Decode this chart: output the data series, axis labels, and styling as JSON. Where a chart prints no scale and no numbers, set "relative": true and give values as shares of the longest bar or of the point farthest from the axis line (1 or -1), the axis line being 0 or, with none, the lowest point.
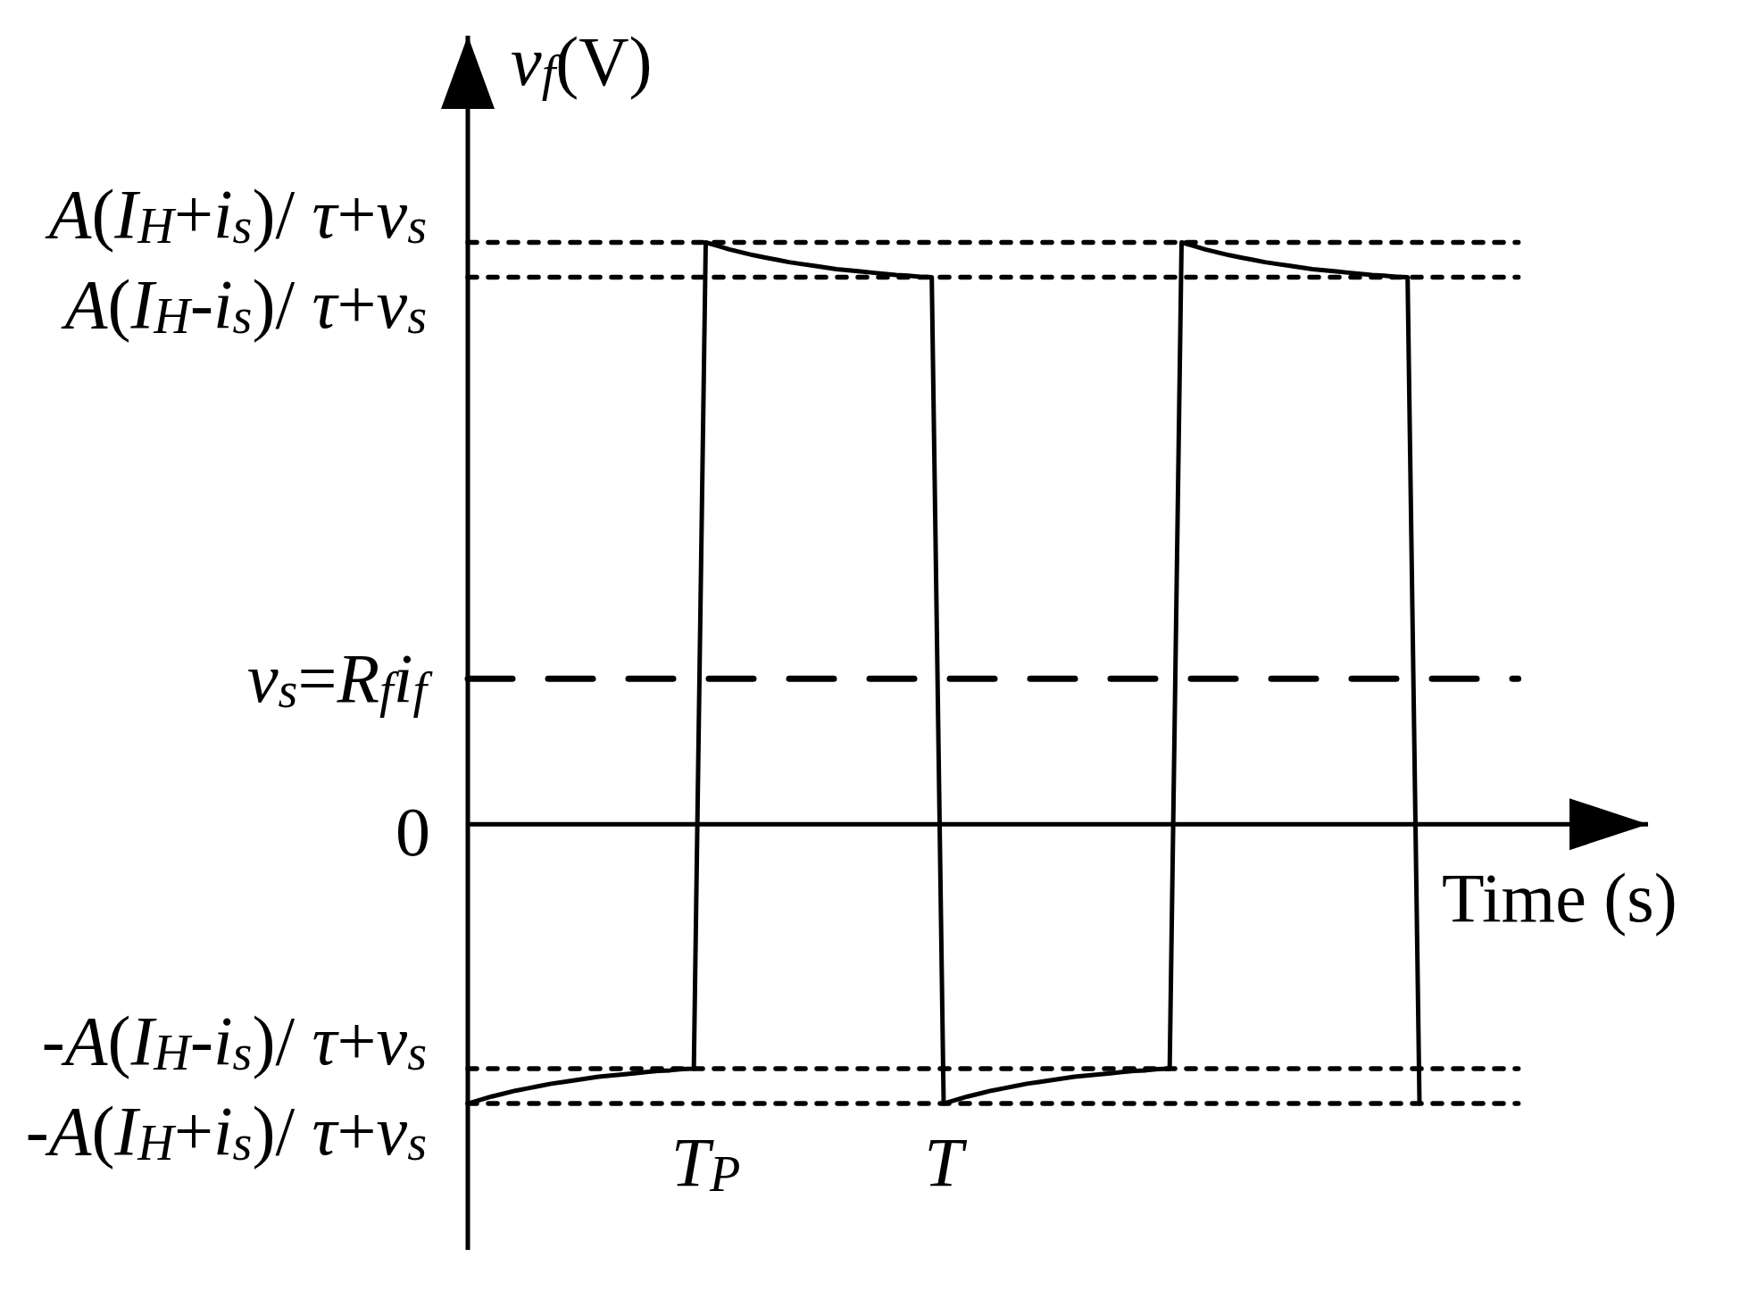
{
  "chart_data": {
    "type": "line",
    "xlabel": "Time (s)",
    "ylabel": "v$_{f}$(V)",
    "relative": true,
    "categories": [
      null,
      null,
      null,
      null,
      null,
      null,
      null,
      null,
      null,
      null,
      null,
      null,
      null,
      null,
      null,
      null,
      null,
      null,
      null,
      null,
      "T$_{P}$",
      null,
      null,
      null,
      null,
      null,
      null,
      null,
      null,
      null,
      null,
      null,
      null,
      null,
      null,
      null,
      null,
      null,
      null,
      null,
      "T",
      null,
      null,
      null,
      null,
      null,
      null,
      null,
      null,
      null,
      null,
      null,
      null,
      null,
      null,
      null,
      null,
      null,
      null,
      null,
      null,
      null,
      null,
      null,
      null,
      null,
      null,
      null,
      null,
      null,
      null,
      null,
      null,
      null,
      null,
      null,
      null,
      null,
      null,
      null,
      null
    ],
    "series": [
      {
        "color": "#000000",
        "values": [
          -0.48,
          -0.474,
          -0.468,
          -0.463,
          -0.458,
          -0.454,
          -0.45,
          -0.446,
          -0.443,
          -0.44,
          -0.437,
          -0.434,
          -0.432,
          -0.43,
          -0.428,
          -0.426,
          -0.424,
          -0.423,
          -0.421,
          -0.42,
          1,
          0.994,
          0.988,
          0.983,
          0.978,
          0.974,
          0.97,
          0.966,
          0.963,
          0.96,
          0.957,
          0.954,
          0.952,
          0.95,
          0.948,
          0.946,
          0.944,
          0.943,
          0.941,
          0.94,
          -0.48,
          -0.474,
          -0.468,
          -0.463,
          -0.458,
          -0.454,
          -0.45,
          -0.446,
          -0.443,
          -0.44,
          -0.437,
          -0.434,
          -0.432,
          -0.43,
          -0.428,
          -0.426,
          -0.424,
          -0.423,
          -0.421,
          -0.42,
          1,
          0.994,
          0.988,
          0.983,
          0.978,
          0.974,
          0.97,
          0.966,
          0.963,
          0.96,
          0.957,
          0.954,
          0.952,
          0.95,
          0.948,
          0.946,
          0.944,
          0.943,
          0.941,
          0.94,
          -0.48
        ]
      }
    ],
    "ref_lines": [
      {
        "axis": "y",
        "value": 1,
        "label": "A(I$_{H}$+i$_{s}$)/ τ+v$_{s}$",
        "line_style": "dotted",
        "color": "#000000"
      },
      {
        "axis": "y",
        "value": 0.94,
        "label": "A(I$_{H}$-i$_{s}$)/ τ+v$_{s}$",
        "line_style": "dotted",
        "color": "#000000"
      },
      {
        "axis": "y",
        "value": 0.25,
        "label": "v$_{s}$=R$_{f}$i$_{f}$",
        "line_style": "dashed",
        "color": "#000000"
      },
      {
        "axis": "y",
        "value": -0.42,
        "label": "-A(I$_{H}$-i$_{s}$)/ τ+v$_{s}$",
        "line_style": "dotted",
        "color": "#000000"
      },
      {
        "axis": "y",
        "value": -0.48,
        "label": "-A(I$_{H}$+i$_{s}$)/ τ+v$_{s}$",
        "line_style": "dotted",
        "color": "#000000"
      }
    ],
    "annotations": [
      "0"
    ],
    "marker": "none",
    "line_style": "solid"
  }
}
